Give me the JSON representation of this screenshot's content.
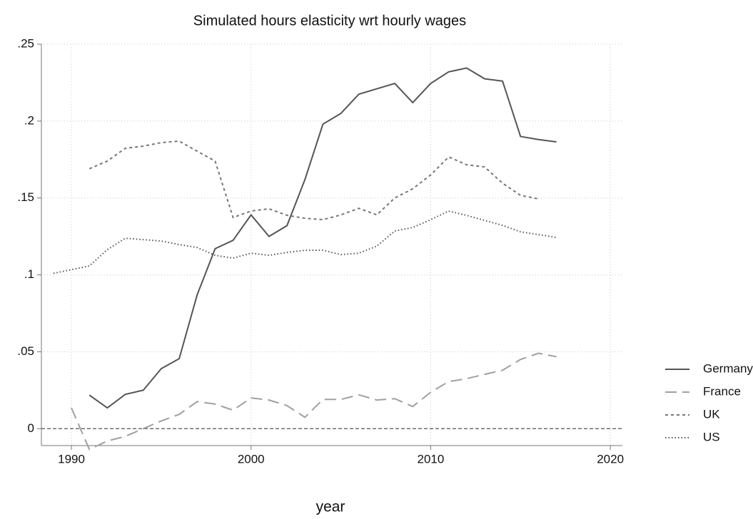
{
  "chart_data": {
    "type": "line",
    "title": "Simulated hours elasticity wrt hourly wages",
    "xlabel": "year",
    "x": [
      1989,
      1990,
      1991,
      1992,
      1993,
      1994,
      1995,
      1996,
      1997,
      1998,
      1999,
      2000,
      2001,
      2002,
      2003,
      2004,
      2005,
      2006,
      2007,
      2008,
      2009,
      2010,
      2011,
      2012,
      2013,
      2014,
      2015,
      2016,
      2017
    ],
    "series": [
      {
        "name": "Germany",
        "color": "#555555",
        "dash": "solid",
        "values": [
          null,
          null,
          0.0218,
          0.0135,
          0.0223,
          0.025,
          0.039,
          0.0455,
          0.087,
          0.117,
          0.1225,
          0.139,
          0.125,
          0.132,
          0.162,
          0.198,
          0.205,
          0.2175,
          0.221,
          0.2245,
          0.212,
          0.2245,
          0.232,
          0.2345,
          0.2275,
          0.226,
          0.19,
          0.188,
          0.1865
        ]
      },
      {
        "name": "France",
        "color": "#a0a0a0",
        "dash": "longdash",
        "values": [
          null,
          0.0135,
          -0.0135,
          -0.008,
          -0.005,
          0,
          0.005,
          0.0093,
          0.0176,
          0.016,
          0.012,
          0.02,
          0.0186,
          0.015,
          0.0074,
          0.019,
          0.019,
          0.022,
          0.0186,
          0.0195,
          0.0144,
          0.0237,
          0.0306,
          0.0325,
          0.0353,
          0.038,
          0.045,
          0.049,
          0.0468
        ]
      },
      {
        "name": "UK",
        "color": "#777777",
        "dash": "dash",
        "values": [
          null,
          null,
          0.169,
          0.174,
          0.1823,
          0.1837,
          0.186,
          0.187,
          0.1804,
          0.174,
          0.1373,
          0.1415,
          0.143,
          0.1387,
          0.1368,
          0.1359,
          0.139,
          0.1433,
          0.139,
          0.15,
          0.156,
          0.165,
          0.1767,
          0.1716,
          0.1702,
          0.1596,
          0.1517,
          0.1494,
          null
        ]
      },
      {
        "name": "US",
        "color": "#555555",
        "dash": "dot",
        "values": [
          0.101,
          0.1034,
          0.1058,
          0.1164,
          0.1238,
          0.1229,
          0.122,
          0.1197,
          0.1178,
          0.1127,
          0.1109,
          0.1141,
          0.1127,
          0.1146,
          0.116,
          0.116,
          0.1132,
          0.1141,
          0.1187,
          0.1285,
          0.1308,
          0.1359,
          0.1415,
          0.1387,
          0.1354,
          0.1322,
          0.128,
          0.1262,
          0.1243
        ]
      }
    ],
    "xlim": [
      1988.33,
      2020.67
    ],
    "xticks": [
      1990,
      2000,
      2010,
      2020
    ],
    "ylim": [
      -0.011,
      0.25
    ],
    "yticks": [
      0,
      {
        "value": 0.05,
        "label": ".05"
      },
      {
        "value": 0.1,
        "label": ".1"
      },
      {
        "value": 0.15,
        "label": ".15"
      },
      {
        "value": 0.2,
        "label": ".2"
      },
      {
        "value": 0.25,
        "label": ".25"
      }
    ],
    "yline": 0,
    "grid": true,
    "legend": "right"
  }
}
